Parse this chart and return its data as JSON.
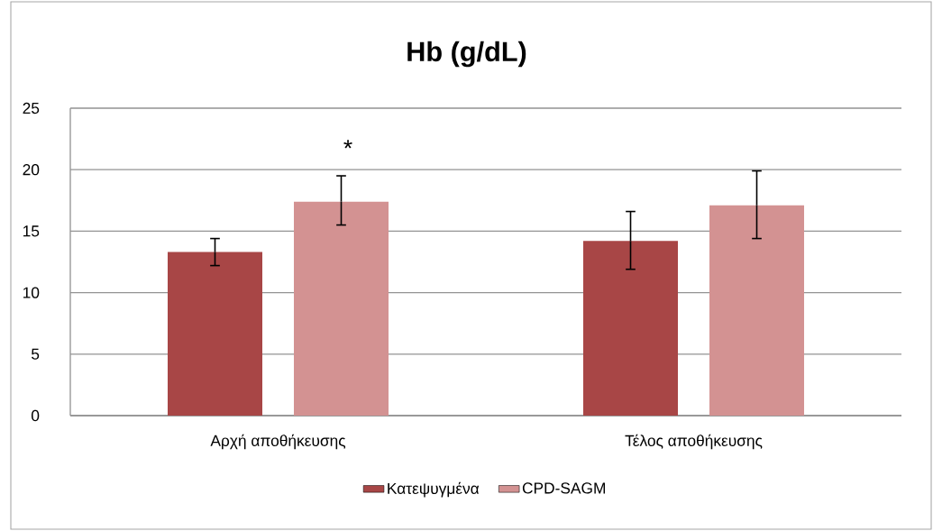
{
  "chart_data": {
    "type": "bar",
    "title": "Hb (g/dL)",
    "categories": [
      "Αρχή αποθήκευσης",
      "Τέλος αποθήκευσης"
    ],
    "series": [
      {
        "name": "Κατεψυγμένα",
        "color": "#a84646",
        "values": [
          13.3,
          14.2
        ],
        "errors": [
          [
            12.2,
            14.4
          ],
          [
            11.9,
            16.6
          ]
        ]
      },
      {
        "name": "CPD-SAGM",
        "color": "#d39292",
        "values": [
          17.4,
          17.1
        ],
        "errors": [
          [
            15.5,
            19.5
          ],
          [
            14.4,
            19.9
          ]
        ]
      }
    ],
    "ylim": [
      0,
      25
    ],
    "yticks": [
      0,
      5,
      10,
      15,
      20,
      25
    ],
    "grid": "y",
    "legend": "bottom",
    "annotations": [
      "*"
    ]
  }
}
